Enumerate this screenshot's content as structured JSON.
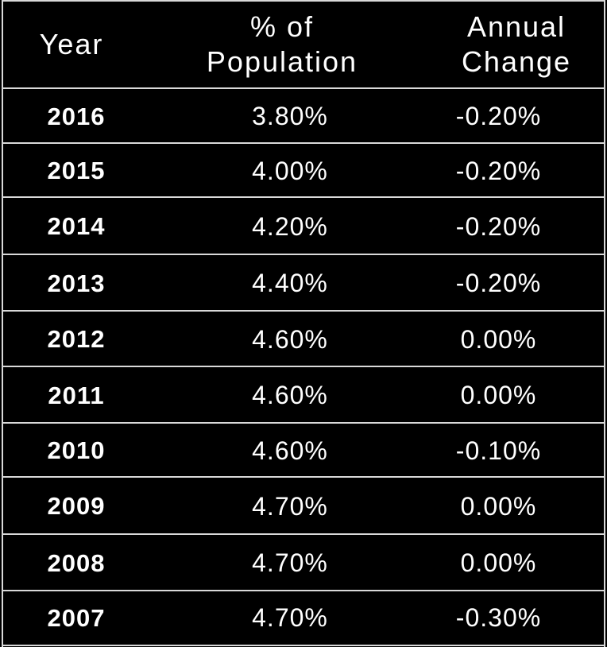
{
  "chart_data": {
    "type": "table",
    "columns": [
      "Year",
      "% of Population",
      "Annual Change"
    ],
    "rows": [
      {
        "year": "2016",
        "pct": "3.80%",
        "change": "-0.20%"
      },
      {
        "year": "2015",
        "pct": "4.00%",
        "change": "-0.20%"
      },
      {
        "year": "2014",
        "pct": "4.20%",
        "change": "-0.20%"
      },
      {
        "year": "2013",
        "pct": "4.40%",
        "change": "-0.20%"
      },
      {
        "year": "2012",
        "pct": "4.60%",
        "change": "0.00%"
      },
      {
        "year": "2011",
        "pct": "4.60%",
        "change": "0.00%"
      },
      {
        "year": "2010",
        "pct": "4.60%",
        "change": "-0.10%"
      },
      {
        "year": "2009",
        "pct": "4.70%",
        "change": "0.00%"
      },
      {
        "year": "2008",
        "pct": "4.70%",
        "change": "0.00%"
      },
      {
        "year": "2007",
        "pct": "4.70%",
        "change": "-0.30%"
      }
    ],
    "colors": {
      "background": "#000000",
      "text": "#ffffff",
      "grid": "#d9d9d9"
    }
  }
}
